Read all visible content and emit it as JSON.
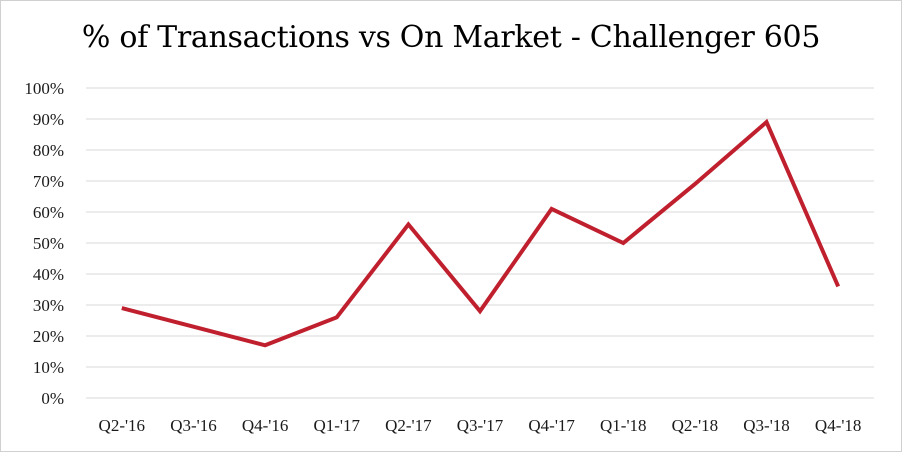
{
  "chart_data": {
    "type": "line",
    "title": "% of Transactions vs On Market - Challenger 605",
    "xlabel": "",
    "ylabel": "",
    "categories": [
      "Q2-'16",
      "Q3-'16",
      "Q4-'16",
      "Q1-'17",
      "Q2-'17",
      "Q3-'17",
      "Q4-'17",
      "Q1-'18",
      "Q2-'18",
      "Q3-'18",
      "Q4-'18"
    ],
    "series": [
      {
        "values": [
          29,
          23,
          17,
          26,
          56,
          28,
          61,
          50,
          69,
          89,
          36
        ]
      }
    ],
    "ylim": [
      0,
      100
    ],
    "yticks": [
      0,
      10,
      20,
      30,
      40,
      50,
      60,
      70,
      80,
      90,
      100
    ],
    "ytick_labels": [
      "0%",
      "10%",
      "20%",
      "30%",
      "40%",
      "50%",
      "60%",
      "70%",
      "80%",
      "90%",
      "100%"
    ],
    "grid": true,
    "legend": "none",
    "line_color": "#c0202e"
  }
}
